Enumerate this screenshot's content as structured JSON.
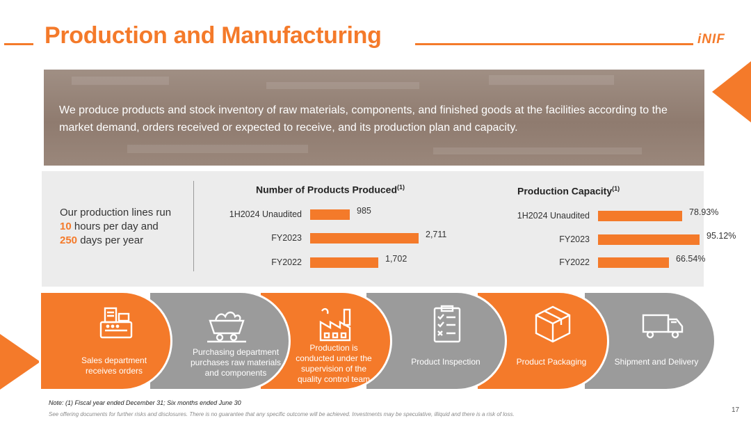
{
  "header": {
    "title": "Production and Manufacturing",
    "logo": "iNIF"
  },
  "banner": {
    "text": "We produce products and stock inventory of raw materials, components, and finished goods at the facilities according to the market demand, orders received or expected to receive, and its production plan and capacity."
  },
  "stats": {
    "line1": "Our production lines run",
    "hours_value": "10",
    "hours_text": " hours per day and",
    "days_value": "250",
    "days_text": " days per year"
  },
  "chart_data": [
    {
      "type": "bar",
      "orientation": "horizontal",
      "title": "Number of Products Produced",
      "title_superscript": "(1)",
      "categories": [
        "1H2024 Unaudited",
        "FY2023",
        "FY2022"
      ],
      "values": [
        985,
        2711,
        1702
      ],
      "value_labels": [
        "985",
        "2,711",
        "1,702"
      ],
      "color": "#f47a2a",
      "grid": false
    },
    {
      "type": "bar",
      "orientation": "horizontal",
      "title": "Production Capacity",
      "title_superscript": "(1)",
      "categories": [
        "1H2024 Unaudited",
        "FY2023",
        "FY2022"
      ],
      "values": [
        78.93,
        95.12,
        66.54
      ],
      "value_labels": [
        "78.93%",
        "95.12%",
        "66.54%"
      ],
      "unit": "%",
      "color": "#f47a2a",
      "grid": false
    }
  ],
  "process": {
    "steps": [
      {
        "label": "Sales department receives orders",
        "icon": "cash-register-icon",
        "color": "orange"
      },
      {
        "label": "Purchasing department purchases raw materials and components",
        "icon": "mine-cart-icon",
        "color": "gray"
      },
      {
        "label": "Production is conducted under the supervision of the quality control team",
        "icon": "factory-icon",
        "color": "orange"
      },
      {
        "label": "Product Inspection",
        "icon": "checklist-icon",
        "color": "gray"
      },
      {
        "label": "Product Packaging",
        "icon": "package-box-icon",
        "color": "orange"
      },
      {
        "label": "Shipment and Delivery",
        "icon": "delivery-truck-icon",
        "color": "gray"
      }
    ]
  },
  "footer": {
    "note": "Note: (1) Fiscal year ended December 31; Six months ended June 30",
    "disclaimer": "See offering documents for further risks and disclosures. There is no guarantee that any specific outcome will be achieved. Investments may be speculative, illiquid and there is a risk of loss.",
    "page_number": "17"
  },
  "colors": {
    "accent": "#f47a2a",
    "gray_step": "#9b9b9b",
    "panel": "#ececec"
  }
}
